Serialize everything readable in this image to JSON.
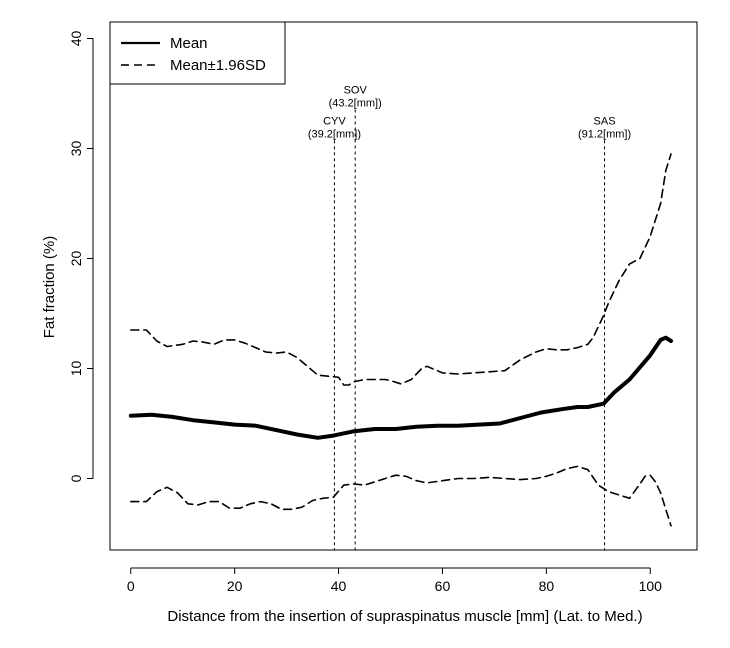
{
  "chart_data": {
    "type": "line",
    "title": "",
    "xlabel": "Distance from the insertion of supraspinatus muscle [mm] (Lat. to Med.)",
    "ylabel": "Fat fraction (%)",
    "xlim": [
      -4,
      109
    ],
    "ylim": [
      -6.5,
      41.5
    ],
    "xticks": [
      0,
      20,
      40,
      60,
      80,
      100
    ],
    "yticks": [
      0,
      10,
      20,
      30,
      40
    ],
    "legend_position": "top-left",
    "legend": [
      {
        "label": "Mean",
        "style": "solid"
      },
      {
        "label": "Mean±1.96SD",
        "style": "dashed"
      }
    ],
    "vlines": [
      {
        "x": 39.2,
        "name": "CYV",
        "value_label": "(39.2[mm])",
        "label_y": 32.2
      },
      {
        "x": 43.2,
        "name": "SOV",
        "value_label": "(43.2[mm])",
        "label_y": 35.0
      },
      {
        "x": 91.2,
        "name": "SAS",
        "value_label": "(91.2[mm])",
        "label_y": 32.2
      }
    ],
    "series": [
      {
        "name": "Mean",
        "style": "solid",
        "x": [
          0,
          4,
          8,
          12,
          16,
          20,
          24,
          28,
          32,
          36,
          39,
          43,
          47,
          51,
          55,
          59,
          63,
          67,
          71,
          75,
          79,
          83,
          86,
          88,
          91,
          93,
          96,
          100,
          102,
          103,
          104
        ],
        "y": [
          5.7,
          5.8,
          5.6,
          5.3,
          5.1,
          4.9,
          4.8,
          4.4,
          4.0,
          3.7,
          3.9,
          4.3,
          4.5,
          4.5,
          4.7,
          4.8,
          4.8,
          4.9,
          5.0,
          5.5,
          6.0,
          6.3,
          6.5,
          6.5,
          6.8,
          7.8,
          9.0,
          11.2,
          12.6,
          12.8,
          12.5
        ]
      },
      {
        "name": "Mean+1.96SD",
        "style": "dashed",
        "x": [
          0,
          3,
          5,
          7,
          10,
          12,
          14,
          16,
          18,
          20,
          22,
          24,
          26,
          28,
          30,
          32,
          34,
          36,
          38,
          40,
          41,
          42,
          43,
          45,
          47,
          49,
          50,
          52,
          54,
          56,
          57,
          60,
          63,
          66,
          69,
          72,
          75,
          78,
          80,
          82,
          84,
          86,
          88,
          89,
          90,
          91,
          92,
          94,
          96,
          98,
          100,
          102,
          103,
          104
        ],
        "y": [
          13.5,
          13.5,
          12.5,
          12.0,
          12.2,
          12.5,
          12.4,
          12.2,
          12.6,
          12.6,
          12.3,
          11.9,
          11.5,
          11.4,
          11.5,
          11.0,
          10.2,
          9.4,
          9.3,
          9.2,
          8.5,
          8.5,
          8.8,
          9.0,
          9.0,
          9.0,
          8.9,
          8.6,
          9.0,
          10.0,
          10.2,
          9.6,
          9.5,
          9.6,
          9.7,
          9.8,
          10.8,
          11.5,
          11.8,
          11.7,
          11.7,
          11.9,
          12.2,
          12.8,
          13.8,
          14.8,
          16.0,
          18.0,
          19.5,
          20.0,
          22.0,
          25.0,
          28.0,
          29.5
        ]
      },
      {
        "name": "Mean-1.96SD",
        "style": "dashed",
        "x": [
          0,
          3,
          5,
          7,
          9,
          11,
          13,
          15,
          17,
          19,
          21,
          23,
          25,
          27,
          29,
          31,
          33,
          35,
          37,
          39,
          41,
          43,
          45,
          47,
          49,
          51,
          53,
          55,
          57,
          60,
          63,
          66,
          69,
          72,
          75,
          78,
          80,
          82,
          84,
          86,
          88,
          90,
          92,
          94,
          96,
          98,
          99,
          100,
          101,
          102,
          103,
          104
        ],
        "y": [
          -2.1,
          -2.1,
          -1.2,
          -0.8,
          -1.3,
          -2.3,
          -2.4,
          -2.1,
          -2.1,
          -2.7,
          -2.7,
          -2.3,
          -2.1,
          -2.3,
          -2.8,
          -2.8,
          -2.6,
          -2.0,
          -1.8,
          -1.7,
          -0.6,
          -0.5,
          -0.6,
          -0.3,
          0.0,
          0.3,
          0.2,
          -0.2,
          -0.4,
          -0.2,
          0.0,
          0.0,
          0.1,
          0.0,
          -0.1,
          0.0,
          0.2,
          0.5,
          0.9,
          1.1,
          0.8,
          -0.6,
          -1.2,
          -1.5,
          -1.8,
          -0.5,
          0.2,
          0.3,
          -0.3,
          -1.3,
          -2.8,
          -4.3
        ]
      }
    ]
  }
}
